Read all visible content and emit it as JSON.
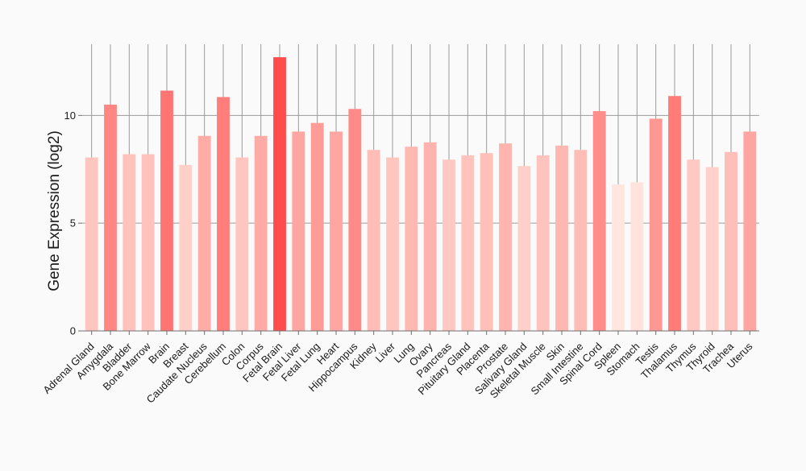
{
  "chart_data": {
    "type": "bar",
    "title": "",
    "xlabel": "",
    "ylabel": "Gene Expression (log2)",
    "ylim": [
      0,
      13.3
    ],
    "yticks": [
      0,
      5,
      10
    ],
    "grid": true,
    "categories": [
      "Adrenal Gland",
      "Amygdala",
      "Bladder",
      "Bone Marrow",
      "Brain",
      "Breast",
      "Caudate Nucleus",
      "Cerebellum",
      "Colon",
      "Corpus",
      "Fetal Brain",
      "Fetal Liver",
      "Fetal Lung",
      "Heart",
      "Hippocampus",
      "Kidney",
      "Liver",
      "Lung",
      "Ovary",
      "Pancreas",
      "Pituitary Gland",
      "Placenta",
      "Prostate",
      "Salivary Gland",
      "Skeletal Muscle",
      "Skin",
      "Small Intestine",
      "Spinal Cord",
      "Spleen",
      "Stomach",
      "Testis",
      "Thalamus",
      "Thymus",
      "Thyroid",
      "Trachea",
      "Uterus"
    ],
    "values": [
      8.05,
      10.5,
      8.2,
      8.2,
      11.15,
      7.7,
      9.05,
      10.85,
      8.05,
      9.05,
      12.7,
      9.25,
      9.65,
      9.25,
      10.3,
      8.4,
      8.05,
      8.55,
      8.75,
      7.95,
      8.15,
      8.25,
      8.7,
      7.65,
      8.15,
      8.6,
      8.4,
      10.2,
      6.8,
      6.9,
      9.85,
      10.9,
      7.95,
      7.6,
      8.3,
      9.25
    ],
    "colors": {
      "bar_low": "#ffe6de",
      "bar_high": "#ff4d4d",
      "grid": "#9a9a9a",
      "axis": "#707070",
      "panel_bg": "#fafafa"
    }
  }
}
